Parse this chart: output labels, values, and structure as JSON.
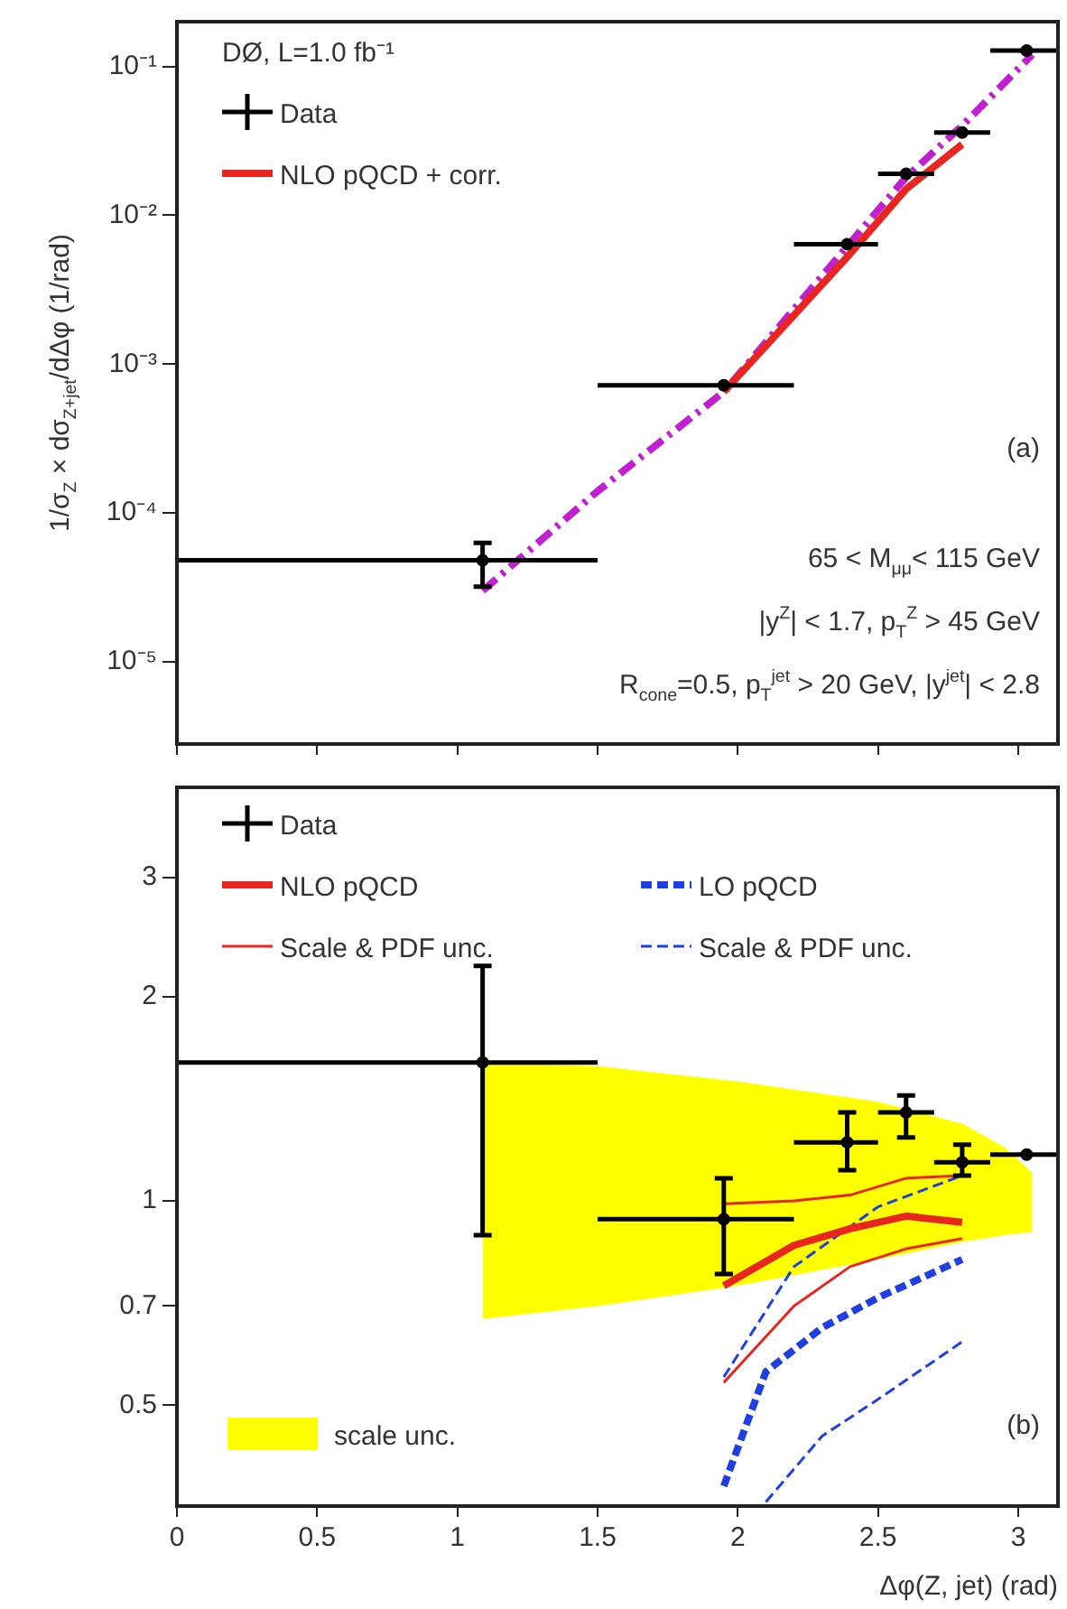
{
  "chart_data": [
    {
      "type": "line",
      "ylabel": "1/σ$_{Z}$ × dσ$_{Z+jet}$/dΔφ (1/rad)",
      "log": "y",
      "tick_labels": "y",
      "legend": "top left",
      "xlim": [
        0,
        3.1416
      ],
      "xticks": [
        0,
        0.5,
        1,
        1.5,
        2,
        2.5,
        3
      ],
      "ylim": [
        2.8e-06,
        0.2
      ],
      "yticks": [
        {
          "value": 1e-05,
          "label": "10⁻⁵"
        },
        {
          "value": 0.0001,
          "label": "10⁻⁴"
        },
        {
          "value": 0.001,
          "label": "10⁻³"
        },
        {
          "value": 0.01,
          "label": "10⁻²"
        },
        {
          "value": 0.1,
          "label": "10⁻¹"
        }
      ],
      "annotations": [
        "DØ, L=1.0 fb⁻¹",
        "(a)",
        "65 < M$_{μμ}$< 115 GeV",
        "|y$^{Z}$| < 1.7, p$_{T}$$^{Z}$ > 45 GeV",
        "R$_{cone}$=0.5, p$_{T}$$^{jet}$ > 20 GeV, |y$^{jet}$| < 2.8"
      ],
      "series": [
        {
          "type": "scatter",
          "name": "Data",
          "color": "#000000",
          "marker": "circle",
          "x": [
            1.09,
            1.95,
            2.39,
            2.6,
            2.8,
            3.03
          ],
          "values": [
            4.8e-05,
            0.00072,
            0.0064,
            0.019,
            0.036,
            0.128
          ],
          "xerrors": [
            [
              0,
              1.5
            ],
            [
              1.5,
              2.2
            ],
            [
              2.2,
              2.5
            ],
            [
              2.5,
              2.7
            ],
            [
              2.7,
              2.9
            ],
            [
              2.9,
              3.1416
            ]
          ],
          "errors": [
            [
              3.2e-05,
              6.3e-05
            ],
            null,
            null,
            null,
            null,
            null
          ]
        },
        {
          "type": "line",
          "name": "NLO pQCD + corr.",
          "color": "#e8251f",
          "line_style": "solid",
          "x": [
            1.95,
            2.4,
            2.6,
            2.8
          ],
          "values": [
            0.00065,
            0.0055,
            0.015,
            0.03
          ]
        },
        {
          "type": "line",
          "color": "#c020d0",
          "line_style": "dashdot",
          "x": [
            1.09,
            1.5,
            1.95,
            2.4,
            2.6,
            2.8,
            3.05
          ],
          "values": [
            3e-05,
            0.00014,
            0.00065,
            0.0065,
            0.018,
            0.04,
            0.12
          ]
        }
      ]
    },
    {
      "type": "line",
      "xlabel": "Δφ(Z, jet) (rad)",
      "log": "y",
      "legend": "top left",
      "xlim": [
        0,
        3.1416
      ],
      "xticks": [
        0,
        0.5,
        1,
        1.5,
        2,
        2.5,
        3
      ],
      "ylim": [
        0.355,
        4.07
      ],
      "yticks": [
        0.5,
        0.7,
        1,
        2,
        3
      ],
      "annotations": [
        "(b)"
      ],
      "series": [
        {
          "type": "line",
          "name": "scale unc.",
          "color": "#ffff00",
          "x": [
            1.09,
            1.5,
            2.0,
            2.5,
            2.8,
            2.95,
            3.05
          ],
          "values": [
            null,
            null,
            null,
            null,
            null,
            null,
            null
          ],
          "upper": [
            1.6,
            1.58,
            1.5,
            1.4,
            1.3,
            1.2,
            1.1
          ],
          "lower": [
            0.67,
            0.7,
            0.75,
            0.82,
            0.87,
            0.89,
            0.9
          ]
        },
        {
          "type": "scatter",
          "name": "Data",
          "color": "#000000",
          "marker": "circle",
          "x": [
            1.09,
            1.95,
            2.39,
            2.6,
            2.8,
            3.03
          ],
          "values": [
            1.6,
            0.94,
            1.22,
            1.35,
            1.14,
            1.17
          ],
          "xerrors": [
            [
              0,
              1.5
            ],
            [
              1.5,
              2.2
            ],
            [
              2.2,
              2.5
            ],
            [
              2.5,
              2.7
            ],
            [
              2.7,
              2.9
            ],
            [
              2.9,
              3.1416
            ]
          ],
          "errors": [
            [
              0.89,
              2.22
            ],
            [
              0.78,
              1.08
            ],
            [
              1.11,
              1.35
            ],
            [
              1.24,
              1.43
            ],
            [
              1.09,
              1.21
            ],
            null
          ]
        },
        {
          "type": "line",
          "name": "NLO pQCD",
          "color": "#e8251f",
          "line_style": "solid",
          "x": [
            1.95,
            2.2,
            2.4,
            2.6,
            2.8
          ],
          "values": [
            0.75,
            0.86,
            0.91,
            0.95,
            0.93
          ]
        },
        {
          "type": "line",
          "name": "Scale & PDF unc.",
          "color": "#e8251f",
          "line_style": "solid",
          "x": [
            1.95,
            2.2,
            2.4,
            2.6,
            2.8
          ],
          "values": [
            0.99,
            1.0,
            1.02,
            1.08,
            1.09
          ]
        },
        {
          "type": "line",
          "color": "#e8251f",
          "line_style": "solid",
          "x": [
            1.95,
            2.2,
            2.4,
            2.6,
            2.8
          ],
          "values": [
            0.54,
            0.7,
            0.8,
            0.85,
            0.88
          ]
        },
        {
          "type": "line",
          "name": "LO pQCD",
          "color": "#1f3fe0",
          "line_style": "dashed",
          "x": [
            1.95,
            2.1,
            2.3,
            2.5,
            2.8
          ],
          "values": [
            0.38,
            0.56,
            0.65,
            0.72,
            0.82
          ]
        },
        {
          "type": "line",
          "name": "Scale & PDF unc.",
          "color": "#1f3fe0",
          "line_style": "dashed",
          "x": [
            1.95,
            2.2,
            2.5,
            2.8
          ],
          "values": [
            0.55,
            0.8,
            0.98,
            1.09
          ]
        },
        {
          "type": "line",
          "color": "#1f3fe0",
          "line_style": "dashed",
          "x": [
            2.1,
            2.3,
            2.5,
            2.8
          ],
          "values": [
            0.36,
            0.45,
            0.51,
            0.62
          ]
        }
      ]
    }
  ]
}
